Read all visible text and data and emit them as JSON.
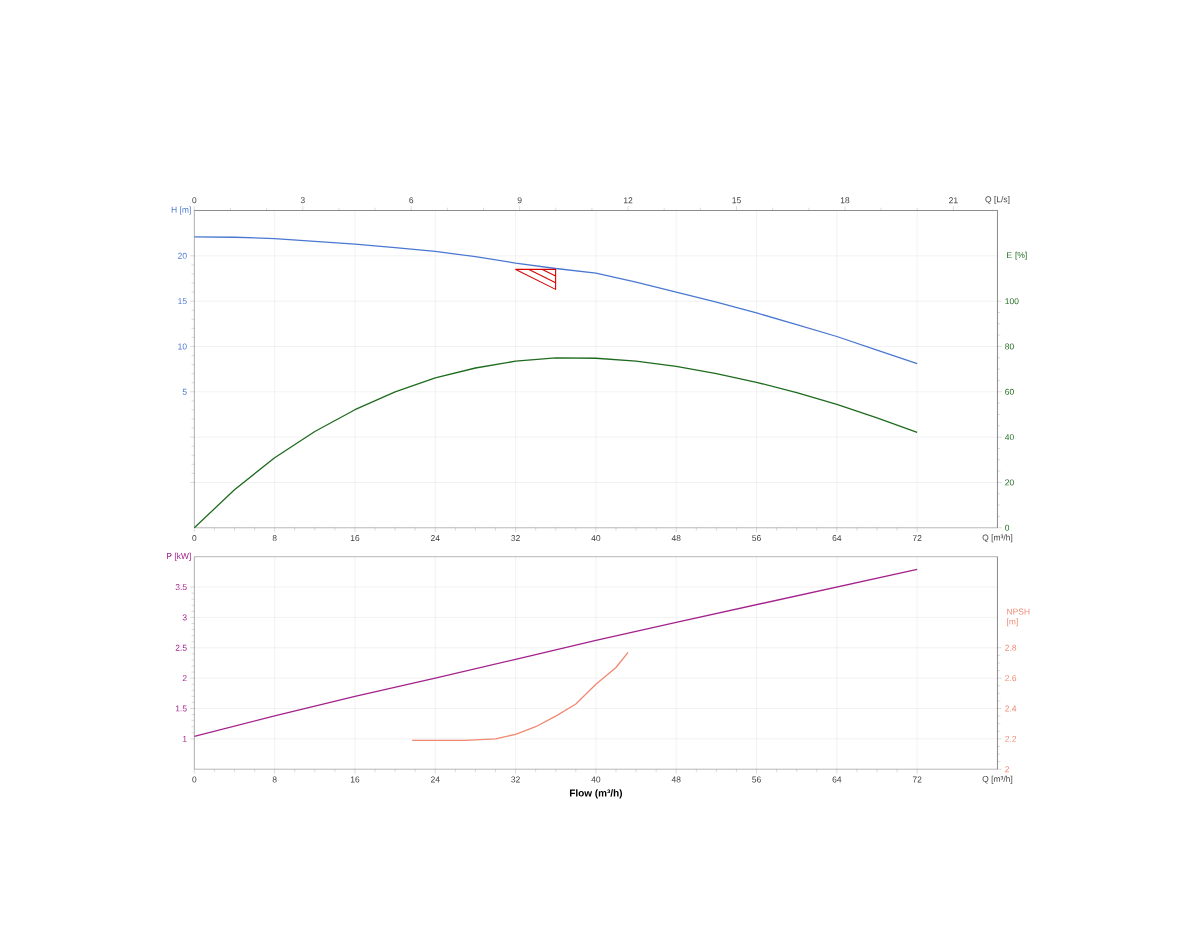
{
  "chart_data": [
    {
      "type": "line",
      "xlabel": "Q [m³/h]",
      "ylabel": "H [m]",
      "y2label": "E [%]",
      "x2label": "Q [L/s]",
      "xlim": [
        0,
        80
      ],
      "xticks": [
        0,
        8,
        16,
        24,
        32,
        40,
        48,
        56,
        64,
        72
      ],
      "x2lim": [
        0,
        22.22
      ],
      "x2ticks": [
        0,
        3,
        6,
        9,
        12,
        15,
        18,
        21
      ],
      "ylim": [
        -10,
        25
      ],
      "yticks": [
        {
          "value": -5,
          "label": null
        },
        {
          "value": 0,
          "label": null
        },
        5,
        10,
        15,
        20
      ],
      "y2lim": [
        0,
        140
      ],
      "y2ticks": [
        0,
        20,
        40,
        60,
        80,
        100
      ],
      "grid": true,
      "series": [
        {
          "color": "#4a78d0",
          "x": [
            0,
            4,
            8,
            12,
            16,
            20,
            24,
            28,
            32,
            36,
            40,
            44,
            48,
            52,
            56,
            60,
            64,
            68,
            72
          ],
          "values": [
            22.1,
            22.05,
            21.9,
            21.6,
            21.3,
            20.9,
            20.5,
            19.9,
            19.2,
            18.6,
            18.1,
            17.1,
            16.0,
            14.9,
            13.7,
            12.4,
            11.1,
            9.6,
            8.1
          ]
        },
        {
          "color": "#1e6b1e",
          "axis": "y2",
          "x": [
            0,
            4,
            8,
            12,
            16,
            20,
            24,
            28,
            32,
            36,
            40,
            44,
            48,
            52,
            56,
            60,
            64,
            68,
            72
          ],
          "values": [
            0,
            16.8,
            30.9,
            42.5,
            52.1,
            60,
            66.1,
            70.5,
            73.5,
            75.0,
            74.8,
            73.5,
            71.2,
            68,
            64.2,
            59.6,
            54.5,
            48.5,
            42.1
          ]
        }
      ]
    },
    {
      "type": "line",
      "xlabel": "Q [m³/h]",
      "ylabel": "P [kW]",
      "y2label": "NPSH [m]",
      "annotations": [
        "Flow (m³/h)"
      ],
      "xlim": [
        0,
        80
      ],
      "xticks": [
        0,
        8,
        16,
        24,
        32,
        40,
        48,
        56,
        64,
        72
      ],
      "ylim": [
        0.5,
        4
      ],
      "yticks": [
        1,
        1.5,
        2,
        2.5,
        3,
        3.5
      ],
      "y2lim": [
        2,
        3.4
      ],
      "y2ticks": [
        2,
        2.2,
        2.4,
        2.6,
        2.8
      ],
      "grid": true,
      "series": [
        {
          "color": "#a3228c",
          "x": [
            0,
            8,
            16,
            24,
            32,
            40,
            48,
            56,
            64,
            72
          ],
          "values": [
            1.04,
            1.38,
            1.7,
            2.0,
            2.31,
            2.62,
            2.92,
            3.21,
            3.5,
            3.79
          ]
        },
        {
          "color": "#f08872",
          "axis": "y2",
          "x": [
            21.7,
            24,
            27,
            30,
            32,
            34,
            36,
            38,
            40,
            42,
            43.2
          ],
          "values": [
            2.19,
            2.19,
            2.19,
            2.2,
            2.23,
            2.28,
            2.35,
            2.43,
            2.56,
            2.67,
            2.77
          ]
        }
      ]
    }
  ]
}
